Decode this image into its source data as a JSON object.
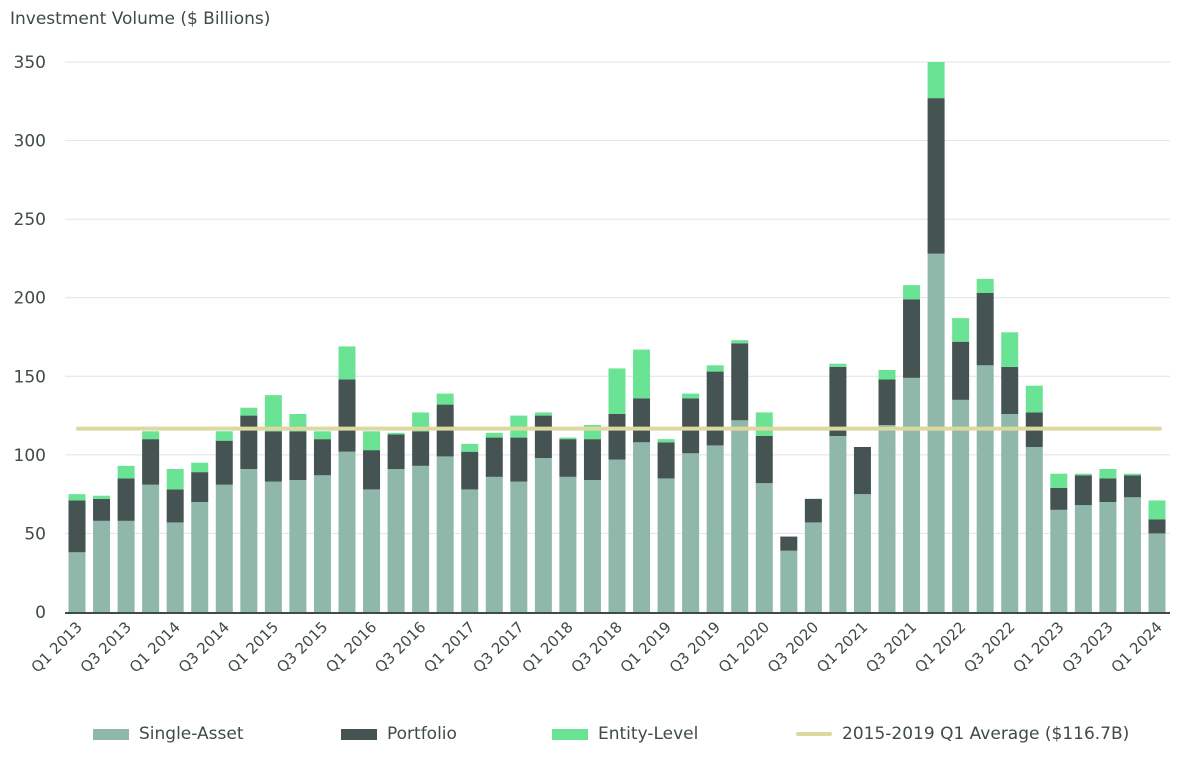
{
  "chart_data": {
    "type": "bar",
    "stacked": true,
    "title": "Investment Volume ($ Billions)",
    "xlabel": "",
    "ylabel": "",
    "ylim": [
      0,
      350
    ],
    "yticks": [
      0,
      50,
      100,
      150,
      200,
      250,
      300,
      350
    ],
    "grid": true,
    "legend_position": "bottom",
    "categories": [
      "Q1 2013",
      "Q2 2013",
      "Q3 2013",
      "Q4 2013",
      "Q1 2014",
      "Q2 2014",
      "Q3 2014",
      "Q4 2014",
      "Q1 2015",
      "Q2 2015",
      "Q3 2015",
      "Q4 2015",
      "Q1 2016",
      "Q2 2016",
      "Q3 2016",
      "Q4 2016",
      "Q1 2017",
      "Q2 2017",
      "Q3 2017",
      "Q4 2017",
      "Q1 2018",
      "Q2 2018",
      "Q3 2018",
      "Q4 2018",
      "Q1 2019",
      "Q2 2019",
      "Q3 2019",
      "Q4 2019",
      "Q1 2020",
      "Q2 2020",
      "Q3 2020",
      "Q4 2020",
      "Q1 2021",
      "Q2 2021",
      "Q3 2021",
      "Q4 2021",
      "Q1 2022",
      "Q2 2022",
      "Q3 2022",
      "Q4 2022",
      "Q1 2023",
      "Q2 2023",
      "Q3 2023",
      "Q4 2023",
      "Q1 2024"
    ],
    "tick_labels": [
      "Q1 2013",
      "Q3 2013",
      "Q1 2014",
      "Q3 2014",
      "Q1 2015",
      "Q3 2015",
      "Q1 2016",
      "Q3 2016",
      "Q1 2017",
      "Q3 2017",
      "Q1 2018",
      "Q3 2018",
      "Q1 2019",
      "Q3 2019",
      "Q1 2020",
      "Q3 2020",
      "Q1 2021",
      "Q3 2021",
      "Q1 2022",
      "Q3 2022",
      "Q1 2023",
      "Q3 2023",
      "Q1 2024"
    ],
    "series": [
      {
        "name": "Single-Asset",
        "color": "#8fb8aa",
        "values": [
          38,
          58,
          58,
          81,
          57,
          70,
          81,
          91,
          83,
          84,
          87,
          102,
          78,
          91,
          93,
          99,
          78,
          86,
          83,
          98,
          86,
          84,
          97,
          108,
          85,
          101,
          106,
          122,
          82,
          39,
          57,
          112,
          75,
          119,
          149,
          228,
          135,
          157,
          126,
          105,
          65,
          68,
          70,
          73,
          50
        ]
      },
      {
        "name": "Portfolio",
        "color": "#455353",
        "values": [
          33,
          14,
          27,
          29,
          21,
          19,
          28,
          34,
          32,
          31,
          23,
          46,
          25,
          22,
          22,
          33,
          24,
          25,
          28,
          27,
          24,
          26,
          29,
          28,
          23,
          35,
          47,
          49,
          30,
          9,
          15,
          44,
          30,
          29,
          50,
          99,
          37,
          46,
          30,
          22,
          14,
          19,
          15,
          14,
          9
        ]
      },
      {
        "name": "Entity-Level",
        "color": "#6be394",
        "values": [
          4,
          2,
          8,
          5,
          13,
          6,
          6,
          5,
          23,
          11,
          5,
          21,
          12,
          1,
          12,
          7,
          5,
          3,
          14,
          2,
          1,
          9,
          29,
          31,
          2,
          3,
          4,
          2,
          15,
          0,
          0,
          2,
          0,
          6,
          9,
          23,
          15,
          9,
          22,
          17,
          9,
          1,
          6,
          1,
          12
        ]
      }
    ],
    "reference_line": {
      "name": "2015-2019 Q1 Average ($116.7B)",
      "value": 116.7,
      "color": "#ddd7a0"
    }
  }
}
